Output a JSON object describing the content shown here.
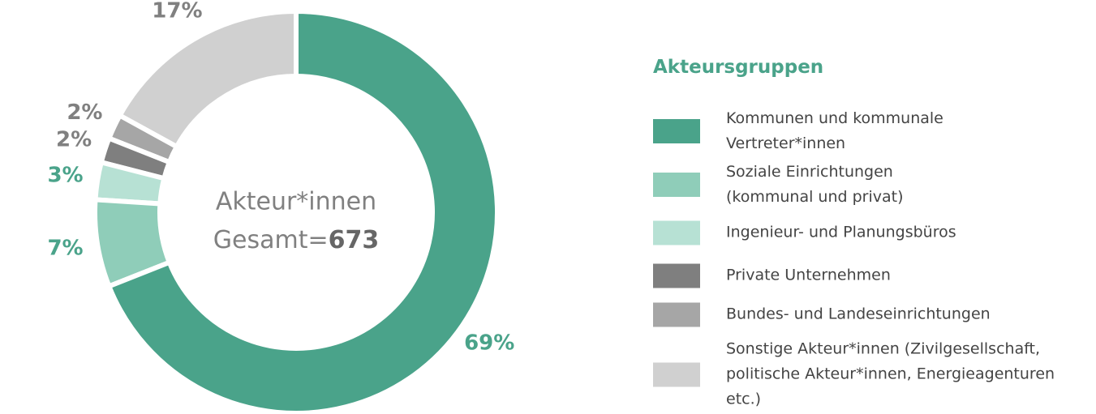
{
  "chart_data": {
    "type": "donut",
    "legend_title": "Akteursgruppen",
    "categories": [
      "Kommunen und kommunale Vertreter*innen",
      "Soziale Einrichtungen (kommunal und privat)",
      "Ingenieur- und Planungsbüros",
      "Private Unternehmen",
      "Bundes- und Landeseinrichtungen",
      "Sonstige Akteur*innen (Zivilgesellschaft, politische Akteur*innen, Energieagenturen etc.)"
    ],
    "values": [
      69,
      7,
      3,
      2,
      2,
      17
    ],
    "value_labels": [
      "69%",
      "7%",
      "3%",
      "2%",
      "2%",
      "17%"
    ],
    "colors": [
      "#4aa38a",
      "#8fcdb9",
      "#b7e1d4",
      "#7f7f7f",
      "#a6a6a6",
      "#d0d0d0"
    ],
    "label_colors": [
      "#4aa38a",
      "#4aa38a",
      "#4aa38a",
      "#808080",
      "#808080",
      "#808080"
    ],
    "center_label": [
      "Akteur*innen",
      "Gesamt="
    ],
    "total": 673,
    "legend": "right"
  }
}
